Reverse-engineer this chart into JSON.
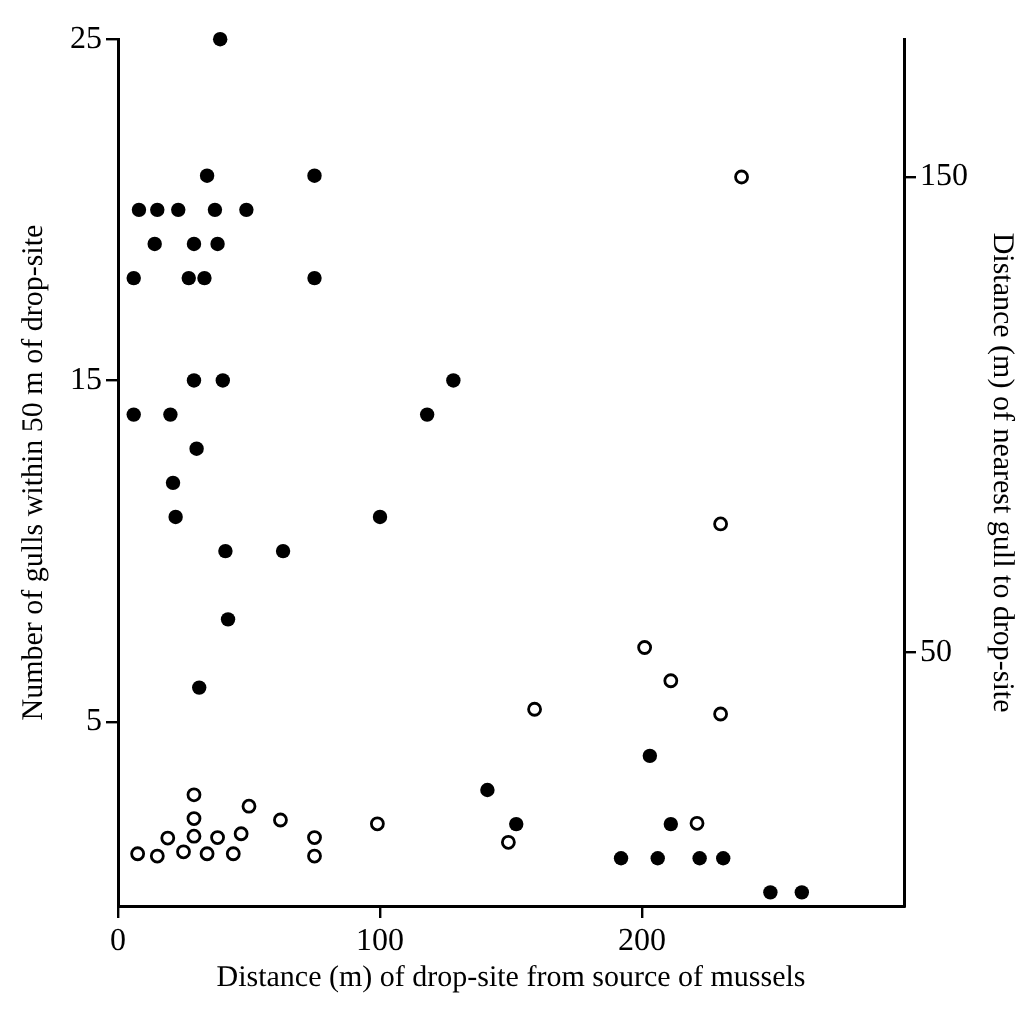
{
  "chart_data": {
    "type": "scatter",
    "xlabel": "Distance (m) of drop-site from source of mussels",
    "ylabel": "Number of gulls within 50 m of drop-site",
    "y2label": "Distance (m) of nearest gull to drop-site",
    "xlim": [
      0,
      300
    ],
    "xticks": [
      0,
      100,
      200
    ],
    "ylim": [
      -0.4,
      25
    ],
    "yticks": [
      5,
      15,
      25
    ],
    "y2lim": [
      -3.4,
      179
    ],
    "y2ticks": [
      50,
      150
    ],
    "grid": false,
    "legend": false,
    "marker": "circle",
    "series": [
      {
        "color": "#000000",
        "x": [
          39,
          75,
          34,
          8,
          15,
          23,
          37,
          49,
          14,
          29,
          38,
          6,
          27,
          33,
          75,
          29,
          40,
          6,
          20,
          30,
          21,
          22,
          100,
          118,
          128,
          41,
          63,
          42,
          31,
          141,
          152,
          203,
          211,
          192,
          206,
          222,
          231,
          249,
          261
        ],
        "values": [
          25,
          21,
          21,
          20,
          20,
          20,
          20,
          20,
          19,
          19,
          19,
          18,
          18,
          18,
          18,
          15,
          15,
          14,
          14,
          13,
          12,
          11,
          11,
          14,
          15,
          10,
          10,
          8,
          6,
          3,
          2,
          4,
          2,
          1,
          1,
          1,
          1,
          0,
          0
        ]
      },
      {
        "color": "#000000",
        "axis": "y2",
        "x": [
          7.5,
          15,
          19,
          25,
          29,
          29,
          29,
          34,
          38,
          44,
          47,
          50,
          62,
          75,
          75,
          99,
          201,
          211,
          159,
          230,
          221,
          149,
          230,
          238
        ],
        "values": [
          7.6,
          7.1,
          10.9,
          8,
          15,
          20,
          11.3,
          7.6,
          11,
          7.6,
          11.8,
          17.6,
          14.7,
          11,
          7.1,
          13.9,
          51,
          44,
          38,
          37,
          14,
          10,
          77,
          150
        ]
      }
    ]
  }
}
